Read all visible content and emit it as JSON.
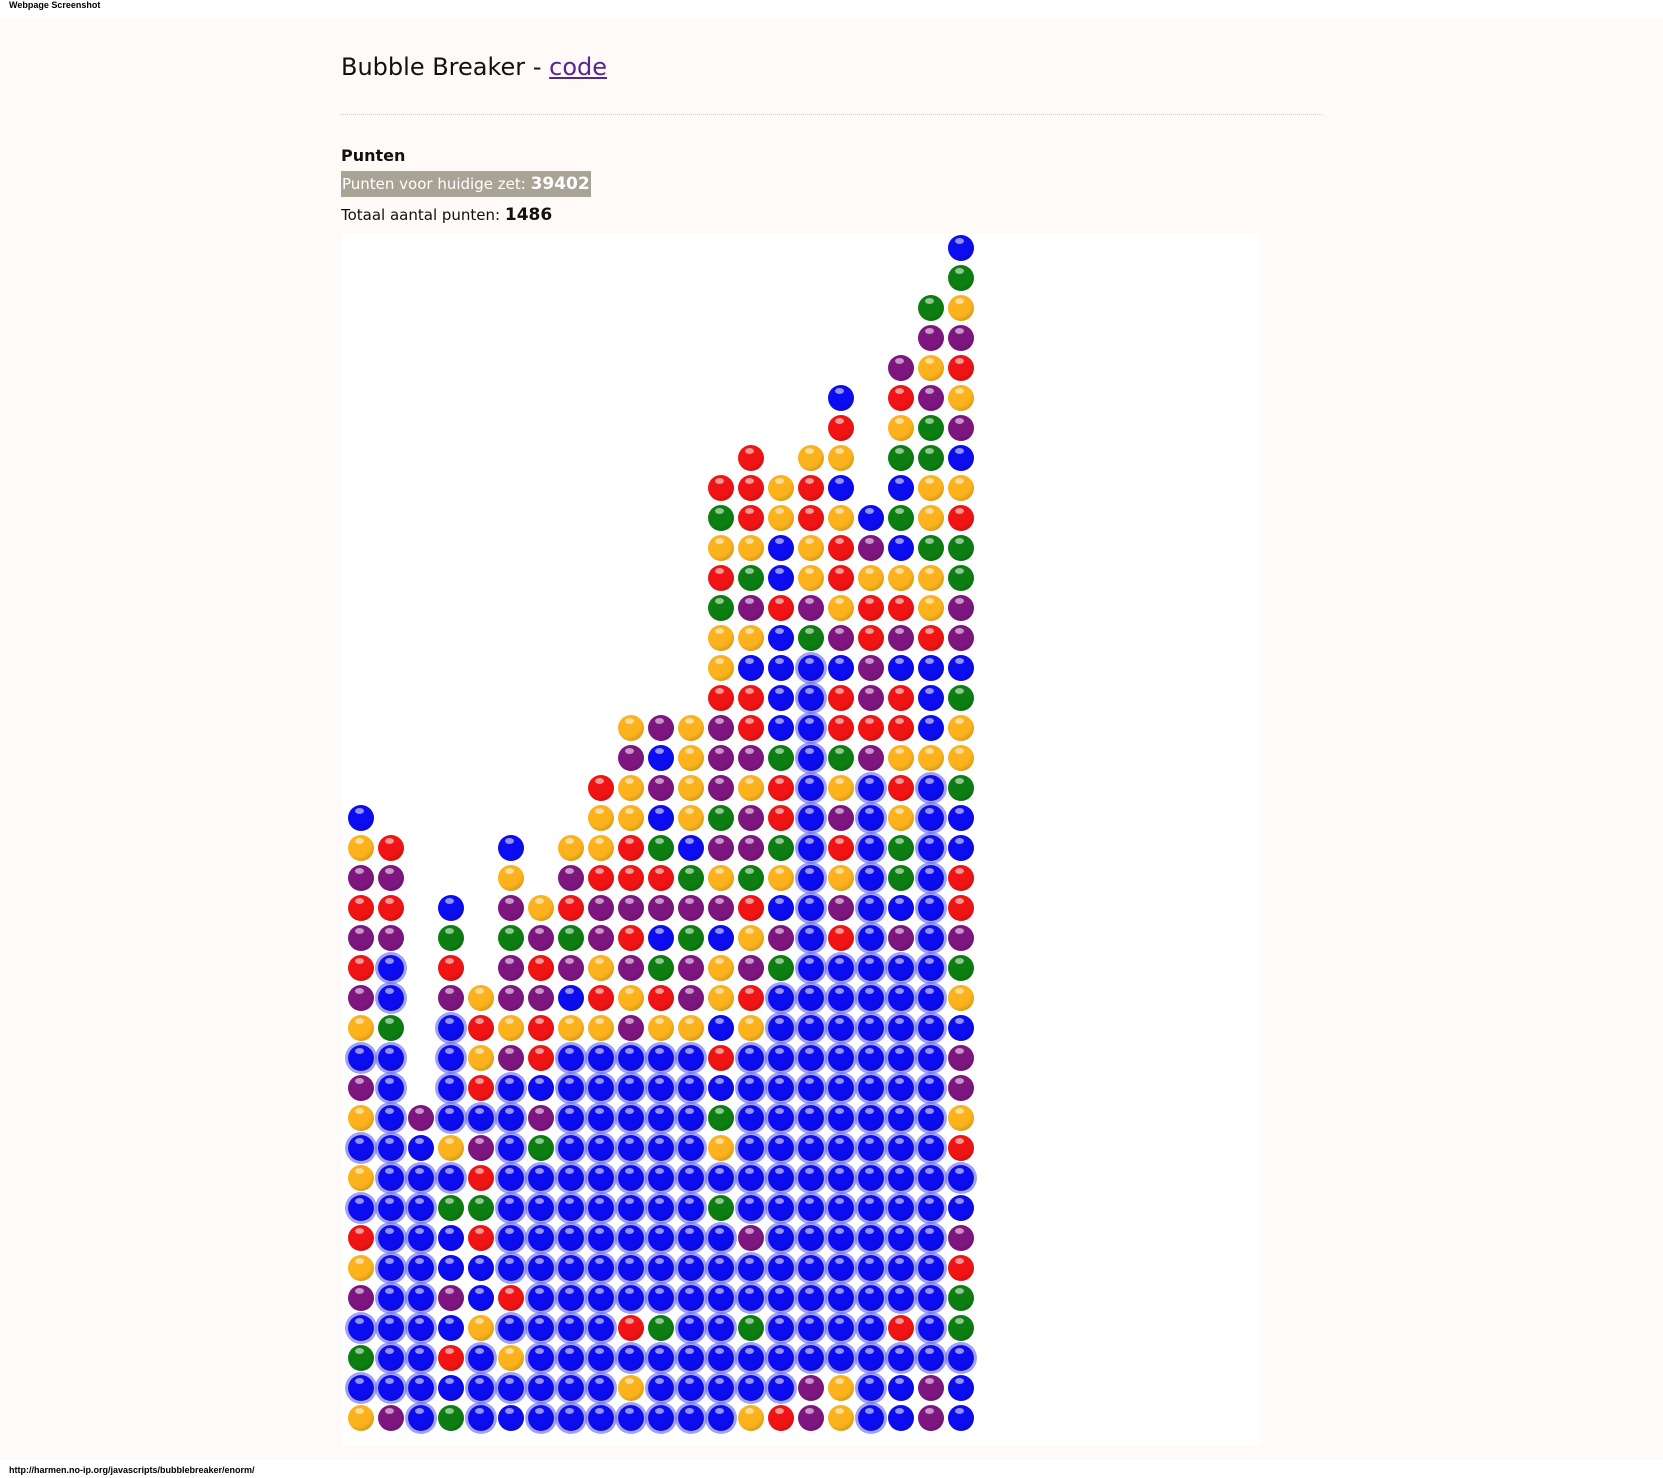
{
  "screenshot_label": "Webpage Screenshot",
  "title": "Bubble Breaker",
  "title_separator": "-",
  "code_link": "code",
  "score_heading": "Punten",
  "current_label": "Punten voor huidige zet:",
  "current_value": "39402",
  "total_label": "Totaal aantal punten:",
  "total_value": "1486",
  "status_url": "http://harmen.no-ip.org/javascripts/bubblebreaker/enorm/",
  "colors": {
    "O": "#fbb21c",
    "B": "#0c0cf0",
    "G": "#0d7f12",
    "P": "#7e1680",
    "R": "#f01414"
  },
  "selection_color": "#6969eb",
  "board_columns": 30,
  "board_rows": 40,
  "board": [
    [
      "O",
      "b",
      "G",
      "b",
      "P",
      "O",
      "R",
      "b",
      "O",
      "b",
      "O",
      "P",
      "b",
      "O",
      "P",
      "R",
      "P",
      "R",
      "P",
      "O",
      "B"
    ],
    [
      "P",
      "b",
      "b",
      "b",
      "b",
      "b",
      "b",
      "b",
      "b",
      "b",
      "b",
      "b",
      "b",
      "G",
      "b",
      "b",
      "P",
      "R",
      "P",
      "R"
    ],
    [
      "b",
      "b",
      "b",
      "b",
      "b",
      "b",
      "b",
      "b",
      "b",
      "B",
      "P"
    ],
    [
      "G",
      "B",
      "R",
      "B",
      "P",
      "B",
      "B",
      "G",
      "b",
      "O",
      "b",
      "b",
      "b",
      "b",
      "P",
      "R",
      "G",
      "B"
    ],
    [
      "b",
      "b",
      "b",
      "O",
      "B",
      "B",
      "R",
      "G",
      "R",
      "P",
      "b",
      "R",
      "O",
      "R",
      "O"
    ],
    [
      "B",
      "b",
      "O",
      "b",
      "R",
      "b",
      "b",
      "b",
      "b",
      "b",
      "b",
      "b",
      "P",
      "O",
      "P",
      "P",
      "G",
      "P",
      "O",
      "B"
    ],
    [
      "b",
      "b",
      "b",
      "b",
      "b",
      "b",
      "b",
      "b",
      "b",
      "G",
      "P",
      "B",
      "R",
      "R",
      "P",
      "R",
      "P",
      "O"
    ],
    [
      "b",
      "b",
      "b",
      "b",
      "b",
      "b",
      "b",
      "b",
      "b",
      "b",
      "b",
      "b",
      "b",
      "O",
      "B",
      "P",
      "G",
      "R",
      "P",
      "O"
    ],
    [
      "b",
      "b",
      "b",
      "b",
      "b",
      "b",
      "b",
      "b",
      "b",
      "b",
      "b",
      "b",
      "b",
      "O",
      "R",
      "O",
      "P",
      "P",
      "R",
      "O",
      "O",
      "R"
    ],
    [
      "b",
      "O",
      "b",
      "R",
      "b",
      "b",
      "b",
      "b",
      "b",
      "b",
      "b",
      "b",
      "b",
      "P",
      "O",
      "P",
      "R",
      "P",
      "R",
      "R",
      "O",
      "O",
      "P",
      "O"
    ],
    [
      "b",
      "b",
      "b",
      "G",
      "b",
      "b",
      "b",
      "b",
      "b",
      "b",
      "b",
      "b",
      "b",
      "O",
      "R",
      "G",
      "B",
      "P",
      "R",
      "G",
      "B",
      "P",
      "B",
      "P"
    ],
    [
      "b",
      "b",
      "b",
      "b",
      "b",
      "b",
      "b",
      "b",
      "b",
      "b",
      "b",
      "b",
      "b",
      "O",
      "P",
      "P",
      "G",
      "P",
      "G",
      "B",
      "O",
      "O",
      "O",
      "O"
    ],
    [
      "b",
      "b",
      "b",
      "b",
      "b",
      "b",
      "b",
      "G",
      "b",
      "O",
      "G",
      "B",
      "R",
      "B",
      "O",
      "O",
      "B",
      "P",
      "O",
      "P",
      "G",
      "P",
      "P",
      "P",
      "R",
      "O",
      "O",
      "G",
      "R",
      "O",
      "G",
      "R"
    ],
    [
      "O",
      "b",
      "b",
      "G",
      "b",
      "b",
      "P",
      "b",
      "b",
      "b",
      "b",
      "b",
      "b",
      "O",
      "R",
      "P",
      "O",
      "R",
      "G",
      "P",
      "P",
      "O",
      "P",
      "R",
      "R",
      "B",
      "O",
      "P",
      "G",
      "O",
      "R",
      "R",
      "R"
    ],
    [
      "R",
      "b",
      "b",
      "b",
      "b",
      "b",
      "b",
      "b",
      "b",
      "b",
      "b",
      "b",
      "b",
      "b",
      "b",
      "G",
      "P",
      "B",
      "O",
      "G",
      "R",
      "R",
      "G",
      "B",
      "B",
      "B",
      "B",
      "R",
      "B",
      "B",
      "O",
      "O"
    ],
    [
      "P",
      "P",
      "b",
      "b",
      "b",
      "b",
      "b",
      "b",
      "b",
      "b",
      "b",
      "b",
      "b",
      "b",
      "b",
      "b",
      "b",
      "b",
      "b",
      "b",
      "b",
      "b",
      "b",
      "b",
      "b",
      "b",
      "G",
      "P",
      "O",
      "O",
      "R",
      "R",
      "O"
    ],
    [
      "O",
      "O",
      "b",
      "b",
      "b",
      "b",
      "b",
      "b",
      "b",
      "b",
      "b",
      "b",
      "b",
      "b",
      "b",
      "b",
      "R",
      "P",
      "O",
      "R",
      "P",
      "O",
      "G",
      "R",
      "R",
      "B",
      "P",
      "O",
      "R",
      "R",
      "O",
      "B",
      "O",
      "R",
      "B"
    ],
    [
      "b",
      "b",
      "b",
      "b",
      "b",
      "b",
      "b",
      "b",
      "b",
      "b",
      "b",
      "b",
      "b",
      "b",
      "b",
      "b",
      "b",
      "b",
      "b",
      "b",
      "b",
      "b",
      "P",
      "R",
      "P",
      "P",
      "R",
      "R",
      "O",
      "P",
      "B"
    ],
    [
      "B",
      "B",
      "b",
      "R",
      "b",
      "b",
      "b",
      "b",
      "b",
      "b",
      "b",
      "b",
      "b",
      "b",
      "b",
      "b",
      "P",
      "B",
      "G",
      "G",
      "O",
      "R",
      "O",
      "R",
      "R",
      "B",
      "P",
      "R",
      "O",
      "B",
      "G",
      "B",
      "G",
      "O",
      "R",
      "P"
    ],
    [
      "P",
      "P",
      "b",
      "b",
      "b",
      "b",
      "b",
      "b",
      "b",
      "b",
      "b",
      "b",
      "b",
      "b",
      "b",
      "b",
      "b",
      "b",
      "b",
      "b",
      "b",
      "b",
      "O",
      "B",
      "B",
      "B",
      "R",
      "O",
      "O",
      "G",
      "O",
      "O",
      "G",
      "G",
      "P",
      "O",
      "P",
      "G"
    ],
    [
      "B",
      "B",
      "b",
      "G",
      "G",
      "R",
      "P",
      "B",
      "b",
      "R",
      "O",
      "P",
      "P",
      "B",
      "O",
      "G",
      "P",
      "R",
      "R",
      "B",
      "B",
      "G",
      "O",
      "O",
      "G",
      "B",
      "P",
      "P",
      "G",
      "G",
      "R",
      "O",
      "B",
      "P",
      "O",
      "R",
      "P",
      "O",
      "G",
      "B"
    ]
  ]
}
